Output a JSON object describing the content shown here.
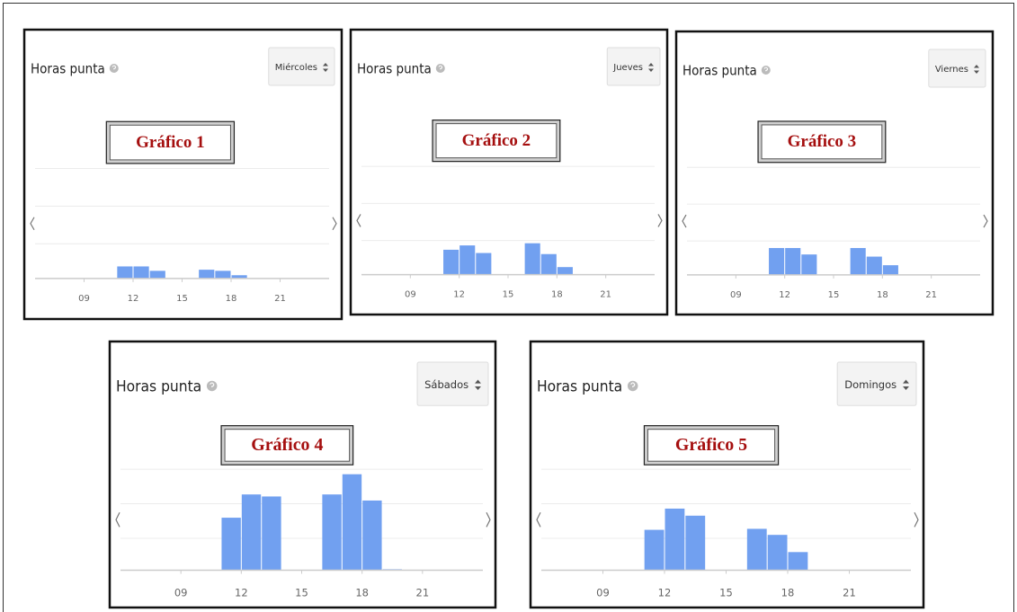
{
  "chart_data": [
    {
      "type": "bar",
      "title": "Horas punta",
      "selector": "Miércoles",
      "label": "Gráfico 1",
      "color": "#71a0f0",
      "x": [
        11,
        12,
        13,
        16,
        17,
        18
      ],
      "values": [
        11,
        11,
        7,
        8,
        7,
        3
      ],
      "xlim": [
        6,
        24
      ],
      "xticks": [
        {
          "value": 9,
          "label": "09"
        },
        12,
        15,
        18,
        21
      ],
      "ylim": [
        0,
        100
      ]
    },
    {
      "type": "bar",
      "title": "Horas punta",
      "selector": "Jueves",
      "label": "Gráfico 2",
      "color": "#71a0f0",
      "x": [
        11,
        12,
        13,
        16,
        17,
        18
      ],
      "values": [
        23,
        27,
        20,
        29,
        19,
        7
      ],
      "xlim": [
        6,
        24
      ],
      "xticks": [
        {
          "value": 9,
          "label": "09"
        },
        12,
        15,
        18,
        21
      ],
      "ylim": [
        0,
        100
      ]
    },
    {
      "type": "bar",
      "title": "Horas punta",
      "selector": "Viernes",
      "label": "Gráfico 3",
      "color": "#71a0f0",
      "x": [
        11,
        12,
        13,
        16,
        17,
        18
      ],
      "values": [
        25,
        25,
        19,
        25,
        17,
        9
      ],
      "xlim": [
        6,
        24
      ],
      "xticks": [
        {
          "value": 9,
          "label": "09"
        },
        12,
        15,
        18,
        21
      ],
      "ylim": [
        0,
        100
      ]
    },
    {
      "type": "bar",
      "title": "Horas punta",
      "selector": "Sábados",
      "label": "Gráfico 4",
      "color": "#71a0f0",
      "x": [
        11,
        12,
        13,
        16,
        17,
        18,
        19
      ],
      "values": [
        52,
        75,
        73,
        75,
        95,
        69,
        1
      ],
      "xlim": [
        6,
        24
      ],
      "xticks": [
        {
          "value": 9,
          "label": "09"
        },
        12,
        15,
        18,
        21
      ],
      "ylim": [
        0,
        100
      ]
    },
    {
      "type": "bar",
      "title": "Horas punta",
      "selector": "Domingos",
      "label": "Gráfico 5",
      "color": "#71a0f0",
      "x": [
        11,
        12,
        13,
        16,
        17,
        18
      ],
      "values": [
        40,
        61,
        54,
        41,
        35,
        18
      ],
      "xlim": [
        6,
        24
      ],
      "xticks": [
        {
          "value": 9,
          "label": "09"
        },
        12,
        15,
        18,
        21
      ],
      "ylim": [
        0,
        100
      ]
    }
  ]
}
